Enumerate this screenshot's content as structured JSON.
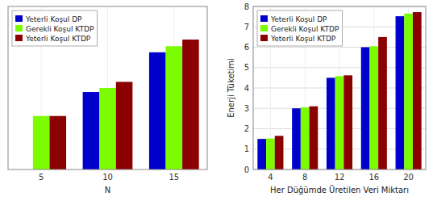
{
  "chart_data": [
    {
      "type": "bar",
      "categories": [
        "5",
        "10",
        "15"
      ],
      "xlabel": "N",
      "ylim": [
        0,
        3.2
      ],
      "tick_labels": "x",
      "grid": true,
      "legend": "upper left",
      "series": [
        {
          "name": "Yeterli Koşul DP",
          "color": "#0000CD",
          "values": [
            0.0,
            1.52,
            2.3
          ]
        },
        {
          "name": "Gerekli Koşul KTDP",
          "color": "#7CFC00",
          "values": [
            1.05,
            1.6,
            2.42
          ]
        },
        {
          "name": "Yeterli Koşul KTDP",
          "color": "#8B0000",
          "values": [
            1.05,
            1.72,
            2.55
          ]
        }
      ]
    },
    {
      "type": "bar",
      "categories": [
        "4",
        "8",
        "12",
        "16",
        "20"
      ],
      "xlabel": "Her Düğümde Üretilen Veri Miktarı",
      "ylabel": "Enerji Tüketimi",
      "ylim": [
        0,
        8
      ],
      "yticks": [
        0,
        1,
        2,
        3,
        4,
        5,
        6,
        7,
        8
      ],
      "grid": true,
      "legend": "upper left",
      "series": [
        {
          "name": "Yeterli Koşul DP",
          "color": "#0000CD",
          "values": [
            1.5,
            3.0,
            4.5,
            6.0,
            7.52
          ]
        },
        {
          "name": "Gerekli Koşul KTDP",
          "color": "#7CFC00",
          "values": [
            1.52,
            3.05,
            4.58,
            6.05,
            7.65
          ]
        },
        {
          "name": "Yeterli Koşul KTDP",
          "color": "#8B0000",
          "values": [
            1.65,
            3.1,
            4.62,
            6.5,
            7.72
          ]
        }
      ]
    }
  ]
}
